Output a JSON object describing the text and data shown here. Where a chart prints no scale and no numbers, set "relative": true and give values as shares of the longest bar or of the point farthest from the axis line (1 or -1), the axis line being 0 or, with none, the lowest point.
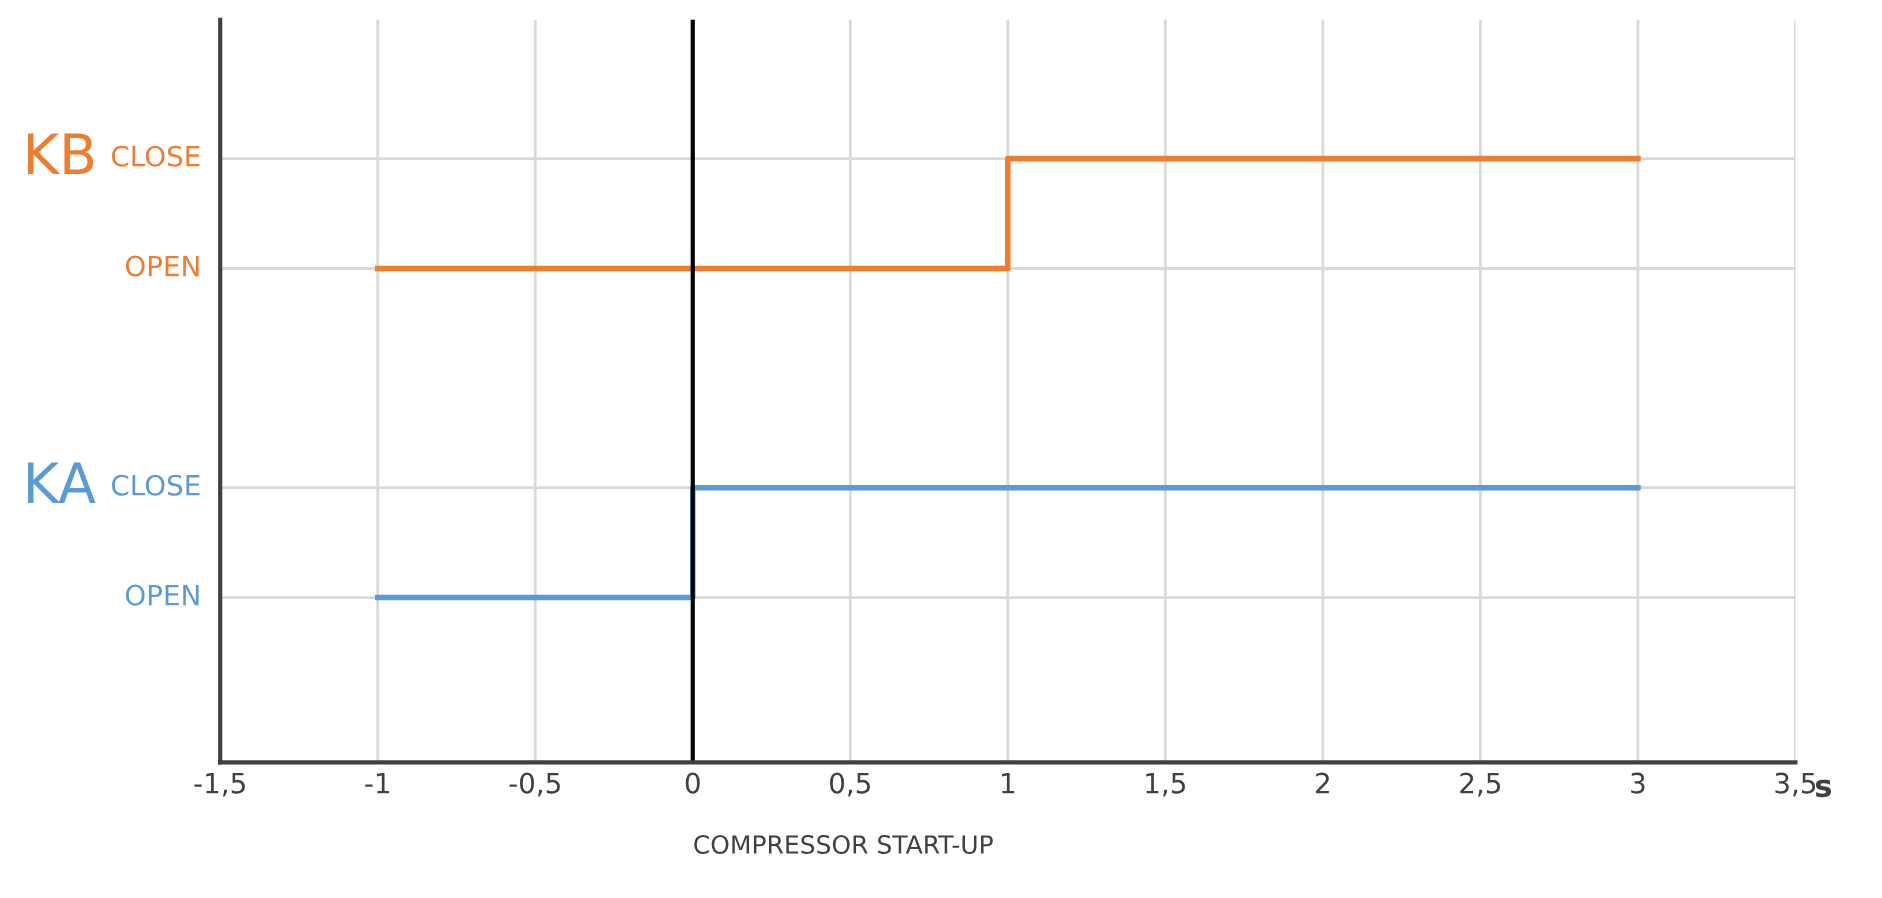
{
  "chart_data": {
    "type": "step",
    "xlabel": "s",
    "relative": true,
    "xlim": [
      -1.5,
      3.5
    ],
    "xticks": [
      {
        "value": -1.5,
        "label": "-1,5"
      },
      -1,
      {
        "value": -0.5,
        "label": "-0,5"
      },
      0,
      {
        "value": 0.5,
        "label": "0,5"
      },
      1,
      {
        "value": 1.5,
        "label": "1,5"
      },
      2,
      {
        "value": 2.5,
        "label": "2,5"
      },
      3,
      {
        "value": 3.5,
        "label": "3,5"
      }
    ],
    "series": [
      {
        "name": "KB",
        "color": "#ed7d31",
        "x": [
          -1,
          1,
          3
        ],
        "values": [
          0.818,
          1,
          1
        ]
      },
      {
        "name": "KA",
        "color": "#5b9bd5",
        "x": [
          -1,
          0,
          3
        ],
        "values": [
          0.273,
          0.455,
          0.455
        ]
      }
    ],
    "annotations": [
      "OPEN",
      "CLOSE",
      "OPEN",
      "CLOSE"
    ],
    "ref_lines": [
      {
        "axis": "x",
        "value": 0,
        "label": "COMPRESSOR START-UP",
        "color": "#000000"
      }
    ],
    "grid": true
  }
}
